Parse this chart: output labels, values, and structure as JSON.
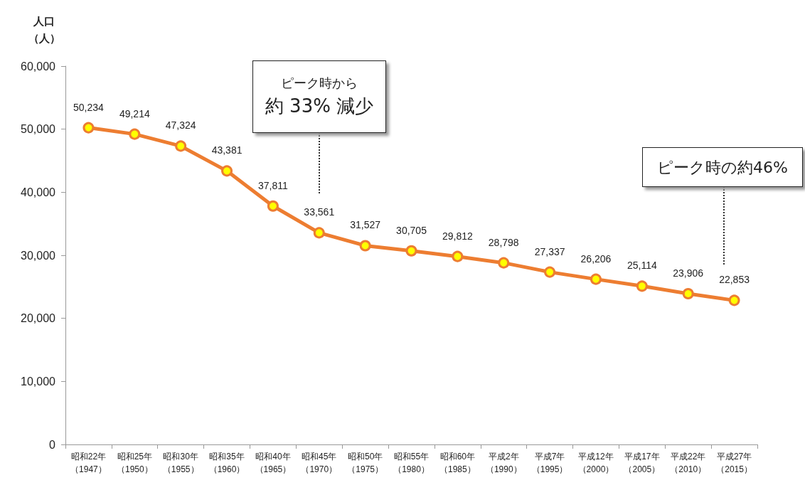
{
  "chart_data": {
    "type": "line",
    "ylabel": "人口（人）",
    "categories": [
      "昭和22年（1947）",
      "昭和25年（1950）",
      "昭和30年（1955）",
      "昭和35年（1960）",
      "昭和40年（1965）",
      "昭和45年（1970）",
      "昭和50年（1975）",
      "昭和55年（1980）",
      "昭和60年（1985）",
      "平成2年（1990）",
      "平成7年（1995）",
      "平成12年（2000）",
      "平成17年（2005）",
      "平成22年（2010）",
      "平成27年（2015）"
    ],
    "series": [
      {
        "color": "#ed7d31",
        "values": [
          50234,
          49214,
          47324,
          43381,
          37811,
          33561,
          31527,
          30705,
          29812,
          28798,
          27337,
          26206,
          25114,
          23906,
          22853
        ],
        "value_labels": [
          "50,234",
          "49,214",
          "47,324",
          "43,381",
          "37,811",
          "33,561",
          "31,527",
          "30,705",
          "29,812",
          "28,798",
          "27,337",
          "26,206",
          "25,114",
          "23,906",
          "22,853"
        ]
      }
    ],
    "ylim": [
      0,
      60000
    ],
    "yticks": [
      0,
      {
        "value": 10000,
        "label": "10,000"
      },
      {
        "value": 20000,
        "label": "20,000"
      },
      {
        "value": 30000,
        "label": "30,000"
      },
      {
        "value": 40000,
        "label": "40,000"
      },
      {
        "value": 50000,
        "label": "50,000"
      },
      {
        "value": 60000,
        "label": "60,000"
      }
    ],
    "grid": false,
    "marker": "circle",
    "line_style": "solid",
    "annotations": [
      "ピーク時から",
      "約 33% 減少",
      "ピーク時の約46%"
    ]
  }
}
